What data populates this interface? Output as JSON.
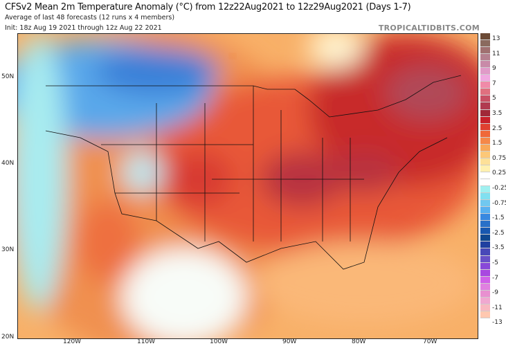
{
  "header": {
    "title": "CFSv2 Mean 2m Temperature Anomaly (°C) from 12z22Aug2021 to 12z29Aug2021 (Days 1-7)",
    "subtitle": "Average of last 48 forecasts (12 runs x 4 members)",
    "init": "Init: 18z Aug 19 2021 through 12z Aug 22 2021",
    "brand": "TROPICALTIDBITS.COM"
  },
  "axes": {
    "lat_labels": [
      "50N",
      "40N",
      "30N",
      "20N"
    ],
    "lon_labels": [
      "120W",
      "110W",
      "100W",
      "90W",
      "80W",
      "70W"
    ]
  },
  "colorbar": {
    "labels": [
      "13",
      "11",
      "9",
      "7",
      "5",
      "3.5",
      "2.5",
      "1.5",
      "0.75",
      "0.25",
      "-0.25",
      "-0.75",
      "-1.5",
      "-2.5",
      "-3.5",
      "-5",
      "-7",
      "-9",
      "-11",
      "-13"
    ],
    "colors": [
      "#6b4a35",
      "#8a6a5e",
      "#a07070",
      "#b5808f",
      "#c88aa8",
      "#e09ac8",
      "#f0a8e0",
      "#f08aa8",
      "#e0707f",
      "#c85064",
      "#b03a50",
      "#a02838",
      "#c8202a",
      "#e04030",
      "#f06838",
      "#f58848",
      "#f8a858",
      "#fcc878",
      "#fde098",
      "#fff0b0",
      "#ffffff",
      "#ffffff",
      "#a0f0f0",
      "#80e0f0",
      "#70c8f0",
      "#58b0f0",
      "#3888e0",
      "#2870c8",
      "#1858b0",
      "#104890",
      "#2040a0",
      "#4848b8",
      "#6850c8",
      "#8848d8",
      "#a848e0",
      "#d060e8",
      "#e080e0",
      "#e890d0",
      "#f0a8d0",
      "#f8b8c0",
      "#ffc8b0"
    ]
  }
}
